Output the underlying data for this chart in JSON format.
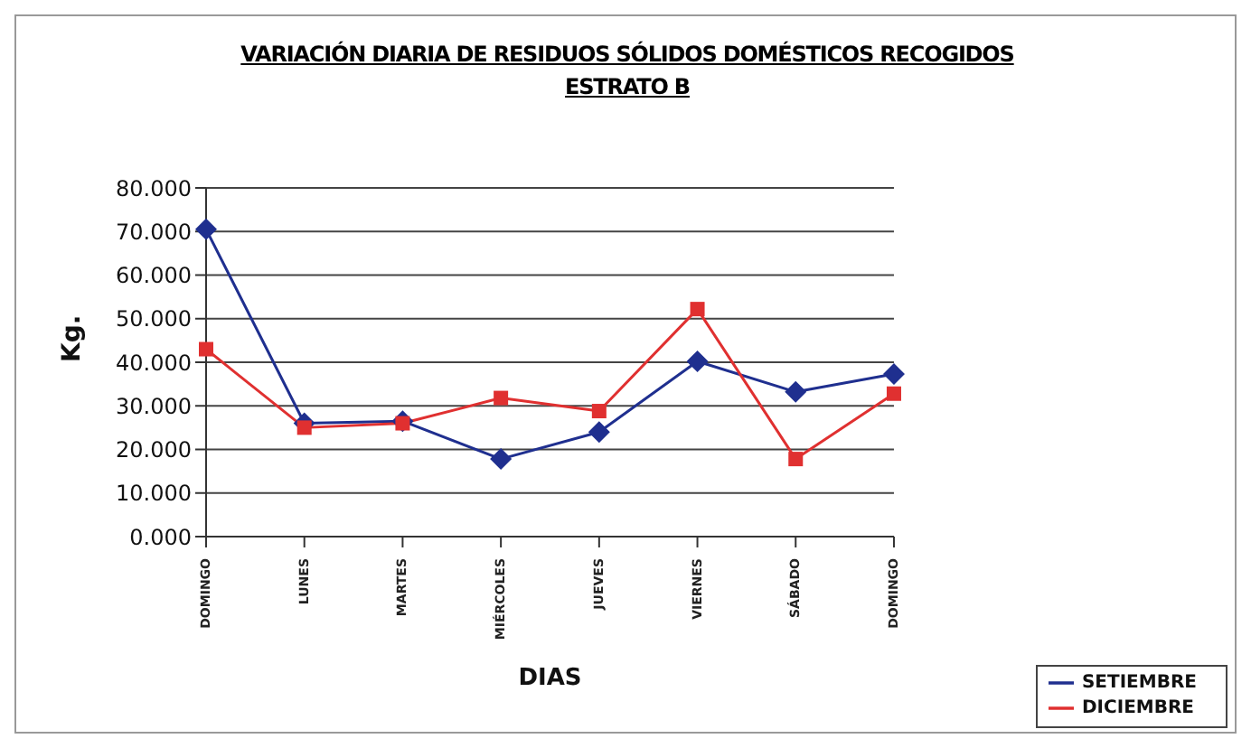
{
  "chart_data": {
    "type": "line",
    "title": "VARIACIÓN DIARIA DE RESIDUOS SÓLIDOS DOMÉSTICOS RECOGIDOS",
    "subtitle": "ESTRATO B",
    "xlabel": "DIAS",
    "ylabel": "Kg.",
    "categories": [
      "DOMINGO",
      "LUNES",
      "MARTES",
      "MIÉRCOLES",
      "JUEVES",
      "VIERNES",
      "SÁBADO",
      "DOMINGO"
    ],
    "series": [
      {
        "name": "SETIEMBRE",
        "color": "#1f2f8f",
        "marker": "diamond",
        "values": [
          70.5,
          26,
          26.5,
          17.8,
          24,
          40.2,
          33.2,
          37.3
        ]
      },
      {
        "name": "DICIEMBRE",
        "color": "#e03030",
        "marker": "square",
        "values": [
          43,
          25,
          26,
          31.8,
          28.8,
          52.2,
          17.8,
          32.8
        ]
      }
    ],
    "ylim": [
      0,
      80
    ],
    "yticks": [
      {
        "value": 0,
        "label": "0.000"
      },
      {
        "value": 10,
        "label": "10.000"
      },
      {
        "value": 20,
        "label": "20.000"
      },
      {
        "value": 30,
        "label": "30.000"
      },
      {
        "value": 40,
        "label": "40.000"
      },
      {
        "value": 50,
        "label": "50.000"
      },
      {
        "value": 60,
        "label": "60.000"
      },
      {
        "value": 70,
        "label": "70.000"
      },
      {
        "value": 80,
        "label": "80.000"
      }
    ],
    "grid": "y",
    "legend": "bottom right",
    "line_style": "solid"
  }
}
